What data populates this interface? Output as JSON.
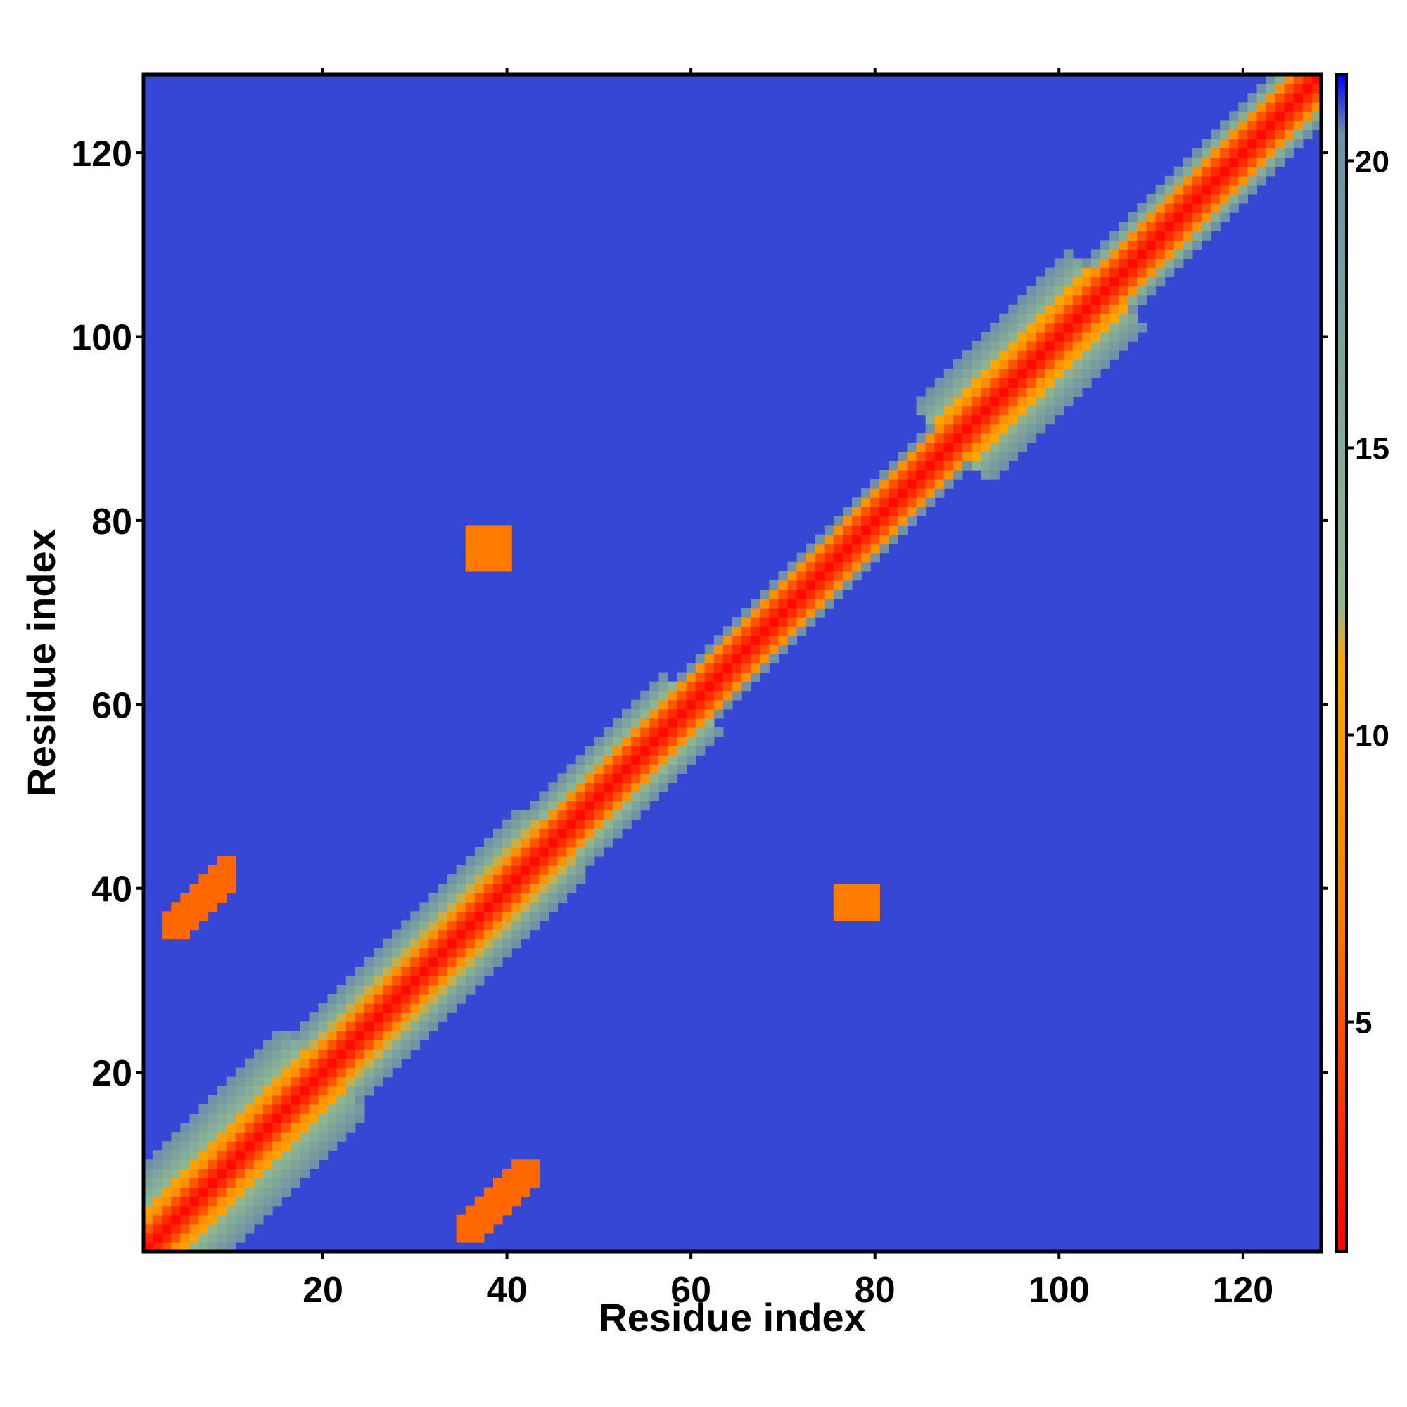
{
  "chart_data": {
    "type": "heatmap",
    "title": "",
    "xlabel": "Residue index",
    "ylabel": "Residue index",
    "xlim": [
      1,
      128
    ],
    "ylim": [
      1,
      128
    ],
    "x_ticks": [
      20,
      40,
      60,
      80,
      100,
      120
    ],
    "y_ticks": [
      20,
      40,
      60,
      80,
      100,
      120
    ],
    "colorbar": {
      "range": [
        1,
        21.5
      ],
      "ticks": [
        5,
        10,
        15,
        20
      ],
      "colors": [
        "#ff0000",
        "#ff7f00",
        "#ffa500",
        "#8fb88f",
        "#6f8fa8",
        "#0000ff"
      ],
      "color_stops": [
        0,
        0.3,
        0.5,
        0.55,
        0.95,
        1
      ]
    },
    "diagonal_band": {
      "segments": [
        [
          1,
          20
        ],
        [
          20,
          45
        ],
        [
          45,
          60
        ],
        [
          60,
          88
        ],
        [
          88,
          105
        ],
        [
          105,
          128
        ]
      ],
      "half_width_residues": [
        9,
        7,
        6,
        4,
        8,
        5
      ]
    },
    "contact_patches": [
      {
        "x": [
          3,
          10
        ],
        "y": [
          35,
          43
        ],
        "value": 6
      },
      {
        "x": [
          35,
          43
        ],
        "y": [
          2,
          10
        ],
        "value": 6
      },
      {
        "x": [
          36,
          40
        ],
        "y": [
          75,
          79
        ],
        "value": 7
      },
      {
        "x": [
          76,
          80
        ],
        "y": [
          37,
          40
        ],
        "value": 7
      }
    ],
    "background_value": 21
  }
}
